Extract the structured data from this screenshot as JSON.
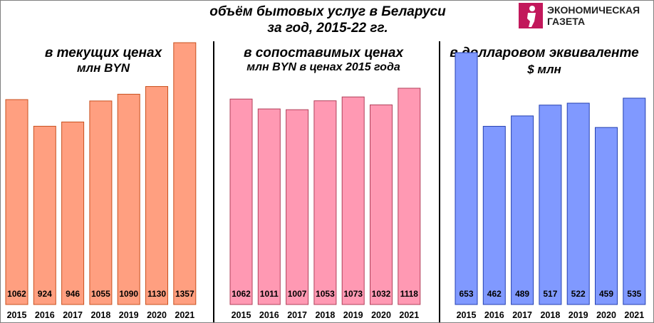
{
  "header": {
    "title_line1": "объём бытовых услуг в Беларуси",
    "title_line2": "за год, 2015-22 гг."
  },
  "logo": {
    "line1": "ЭКОНОМИЧЕСКАЯ",
    "line2": "ГАЗЕТА"
  },
  "panels": [
    {
      "subtitle1": "в текущих ценах",
      "subtitle2": "млн BYN"
    },
    {
      "subtitle1": "в сопоставимых ценах",
      "subtitle2": "млн BYN в ценах 2015 года"
    },
    {
      "subtitle1": "в долларовом эквиваленте",
      "subtitle2": "$ млн"
    }
  ],
  "chart_data": [
    {
      "type": "bar",
      "title": "в текущих ценах",
      "ylabel": "млн BYN",
      "categories": [
        "2015",
        "2016",
        "2017",
        "2018",
        "2019",
        "2020",
        "2021"
      ],
      "values": [
        1062,
        924,
        946,
        1055,
        1090,
        1130,
        1357
      ],
      "color": "#ff9f80",
      "stroke": "#c8501e"
    },
    {
      "type": "bar",
      "title": "в сопоставимых ценах",
      "ylabel": "млн BYN в ценах 2015 года",
      "categories": [
        "2015",
        "2016",
        "2017",
        "2018",
        "2019",
        "2020",
        "2021"
      ],
      "values": [
        1062,
        1011,
        1007,
        1053,
        1073,
        1032,
        1118
      ],
      "color": "#ff99b3",
      "stroke": "#b0405a"
    },
    {
      "type": "bar",
      "title": "в долларовом эквиваленте",
      "ylabel": "$ млн",
      "categories": [
        "2015",
        "2016",
        "2017",
        "2018",
        "2019",
        "2020",
        "2021"
      ],
      "values": [
        653,
        462,
        489,
        517,
        522,
        459,
        535
      ],
      "color": "#8099ff",
      "stroke": "#2440b0"
    }
  ]
}
